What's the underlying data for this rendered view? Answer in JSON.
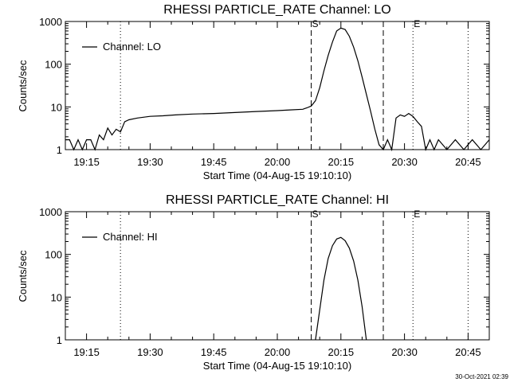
{
  "footer": {
    "timestamp": "30-Oct-2021 02:39"
  },
  "chart_data": [
    {
      "type": "line",
      "title": "RHESSI PARTICLE_RATE Channel: LO",
      "xlabel": "Start Time (04-Aug-15 19:10:10)",
      "ylabel": "Counts/sec",
      "y_scale": "log",
      "ylim": [
        1,
        1000
      ],
      "xlim": [
        "19:10",
        "20:50"
      ],
      "x_tick_labels": [
        "19:15",
        "19:30",
        "19:45",
        "20:00",
        "20:15",
        "20:30",
        "20:45"
      ],
      "y_tick_labels": [
        "1",
        "10",
        "100",
        "1000"
      ],
      "legend": {
        "position": "top-left",
        "entries": [
          "Channel: LO"
        ]
      },
      "markers": [
        {
          "label": "",
          "time": "19:23",
          "style": "dotted"
        },
        {
          "label": "S",
          "time": "20:08",
          "style": "dashed"
        },
        {
          "label": "",
          "time": "20:25",
          "style": "dashed"
        },
        {
          "label": "E",
          "time": "20:32",
          "style": "dotted"
        },
        {
          "label": "",
          "time": "20:45",
          "style": "dotted"
        }
      ],
      "series": [
        {
          "name": "Channel: LO",
          "x": [
            "19:10",
            "19:11",
            "19:12",
            "19:13",
            "19:14",
            "19:15",
            "19:16",
            "19:17",
            "19:18",
            "19:19",
            "19:20",
            "19:21",
            "19:22",
            "19:23",
            "19:24",
            "19:25",
            "19:27",
            "19:30",
            "19:33",
            "19:36",
            "19:40",
            "19:45",
            "19:50",
            "19:55",
            "20:00",
            "20:03",
            "20:06",
            "20:07",
            "20:08",
            "20:09",
            "20:10",
            "20:11",
            "20:12",
            "20:13",
            "20:14",
            "20:15",
            "20:16",
            "20:17",
            "20:18",
            "20:19",
            "20:20",
            "20:21",
            "20:22",
            "20:23",
            "20:24",
            "20:25",
            "20:26",
            "20:27",
            "20:28",
            "20:29",
            "20:30",
            "20:31",
            "20:32",
            "20:33",
            "20:34",
            "20:35",
            "20:36",
            "20:37",
            "20:38",
            "20:40",
            "20:42",
            "20:44",
            "20:46",
            "20:48",
            "20:50"
          ],
          "values": [
            1.7,
            1.7,
            1.0,
            1.7,
            1.0,
            1.7,
            1.7,
            1.0,
            2.2,
            1.7,
            3.2,
            2.2,
            3.0,
            2.6,
            4.5,
            5.0,
            5.5,
            6.0,
            6.2,
            6.5,
            6.8,
            7.0,
            7.4,
            7.8,
            8.2,
            8.5,
            8.8,
            9.5,
            10.5,
            14,
            28,
            70,
            160,
            330,
            600,
            700,
            650,
            450,
            250,
            120,
            50,
            20,
            8,
            3,
            1.3,
            1.0,
            1.7,
            1.0,
            5.5,
            6.5,
            6.0,
            7.0,
            6.0,
            4.5,
            3.5,
            1.0,
            1.7,
            1.0,
            1.7,
            1.0,
            1.7,
            1.0,
            1.7,
            1.0,
            1.7
          ]
        }
      ]
    },
    {
      "type": "line",
      "title": "RHESSI PARTICLE_RATE Channel: HI",
      "xlabel": "Start Time (04-Aug-15 19:10:10)",
      "ylabel": "Counts/sec",
      "y_scale": "log",
      "ylim": [
        1,
        1000
      ],
      "xlim": [
        "19:10",
        "20:50"
      ],
      "x_tick_labels": [
        "19:15",
        "19:30",
        "19:45",
        "20:00",
        "20:15",
        "20:30",
        "20:45"
      ],
      "y_tick_labels": [
        "1",
        "10",
        "100",
        "1000"
      ],
      "legend": {
        "position": "top-left",
        "entries": [
          "Channel: HI"
        ]
      },
      "markers": [
        {
          "label": "",
          "time": "19:23",
          "style": "dotted"
        },
        {
          "label": "S",
          "time": "20:08",
          "style": "dashed"
        },
        {
          "label": "",
          "time": "20:25",
          "style": "dashed"
        },
        {
          "label": "E",
          "time": "20:32",
          "style": "dotted"
        },
        {
          "label": "",
          "time": "20:45",
          "style": "dotted"
        }
      ],
      "series": [
        {
          "name": "Channel: HI",
          "x": [
            "20:09",
            "20:10",
            "20:11",
            "20:12",
            "20:13",
            "20:14",
            "20:15",
            "20:16",
            "20:17",
            "20:18",
            "20:19",
            "20:20",
            "20:21"
          ],
          "values": [
            1.0,
            5,
            25,
            80,
            160,
            230,
            250,
            210,
            140,
            70,
            25,
            6,
            1.0
          ]
        }
      ]
    }
  ]
}
